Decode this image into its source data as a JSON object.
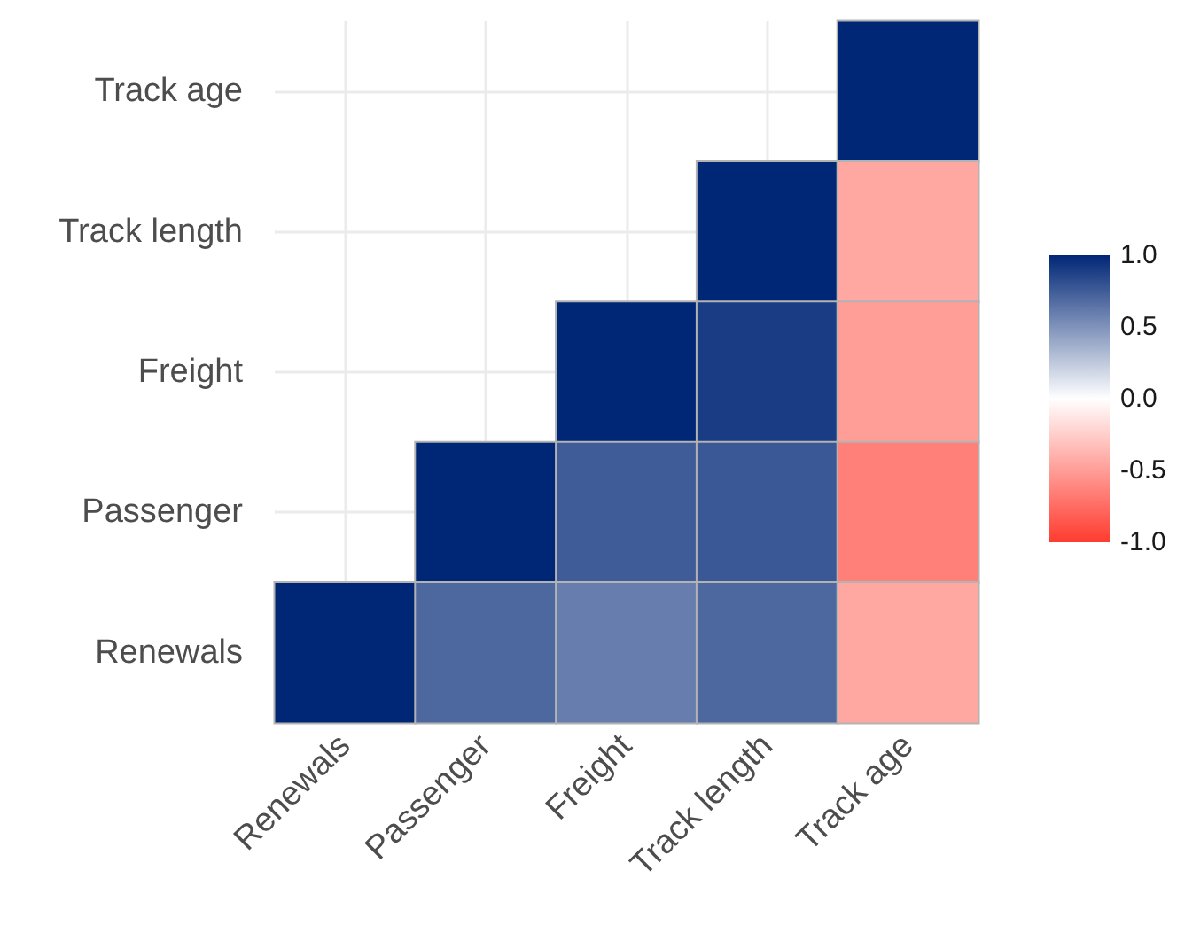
{
  "chart_data": {
    "type": "heatmap",
    "categories": [
      "Renewals",
      "Passenger",
      "Freight",
      "Track length",
      "Track age"
    ],
    "y_categories": [
      "Track age",
      "Track length",
      "Freight",
      "Passenger",
      "Renewals"
    ],
    "cells": [
      [
        null,
        null,
        null,
        null,
        1
      ],
      [
        null,
        null,
        null,
        1,
        -0.45
      ],
      [
        null,
        null,
        1,
        0.9,
        -0.5
      ],
      [
        null,
        1,
        0.75,
        0.77,
        -0.65
      ],
      [
        1,
        0.7,
        0.6,
        0.7,
        -0.45
      ]
    ],
    "clim": [
      -1,
      1
    ],
    "cticks": [
      {
        "value": 1,
        "label": "1.0"
      },
      {
        "value": 0.5,
        "label": "0.5"
      },
      {
        "value": 0,
        "label": "0.0"
      },
      {
        "value": -0.5,
        "label": "-0.5"
      },
      {
        "value": -1,
        "label": "-1.0"
      }
    ],
    "grid": true
  }
}
